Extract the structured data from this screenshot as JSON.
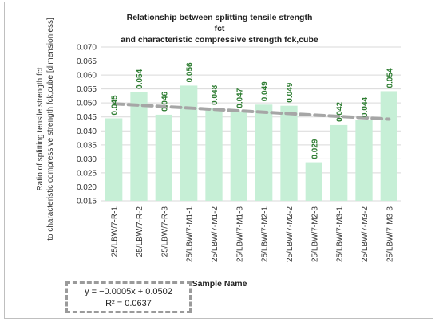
{
  "chart_data": {
    "type": "bar",
    "title_line1": "Relationship between splitting tensile strength",
    "title_line2": "fct",
    "title_line3": "and characteristic compressive strength fck,cube",
    "xlabel": "Sample Name",
    "ylabel_line1": "Ratio of splitting tensile strength fct",
    "ylabel_line2": "to characteristic compressive strength fck,cube [dimensionless]",
    "categories": [
      "25/LBW/7-R-1",
      "25/LBW/7-R-2",
      "25/LBW/7-R-3",
      "25/LBW/7-M1-1",
      "25/LBW/7-M1-2",
      "25/LBW/7-M1-3",
      "25/LBW/7-M2-1",
      "25/LBW/7-M2-2",
      "25/LBW/7-M2-3",
      "25/LBW/7-M3-1",
      "25/LBW/7-M3-2",
      "25/LBW/7-M3-3"
    ],
    "values": [
      0.0445,
      0.0538,
      0.0458,
      0.0562,
      0.0481,
      0.047,
      0.0494,
      0.049,
      0.0288,
      0.0421,
      0.0438,
      0.0542
    ],
    "data_labels": [
      "0.045",
      "0.054",
      "0.046",
      "0.056",
      "0.048",
      "0.047",
      "0.049",
      "0.049",
      "0.029",
      "0.042",
      "0.044",
      "0.054"
    ],
    "ylim": [
      0.015,
      0.07
    ],
    "yticks": [
      "0.015",
      "0.020",
      "0.025",
      "0.030",
      "0.035",
      "0.040",
      "0.045",
      "0.050",
      "0.055",
      "0.060",
      "0.065",
      "0.070"
    ],
    "grid": true,
    "trendline": {
      "slope": -0.0005,
      "intercept": 0.0502,
      "style": "dashed"
    },
    "equation": "y = −0.0005x + 0.0502",
    "r_squared": "R² = 0.0637",
    "colors": {
      "bar": "#c6efd6",
      "label": "#2e7d32",
      "trend": "#a6a6a6",
      "grid": "#d9d9d9"
    }
  }
}
